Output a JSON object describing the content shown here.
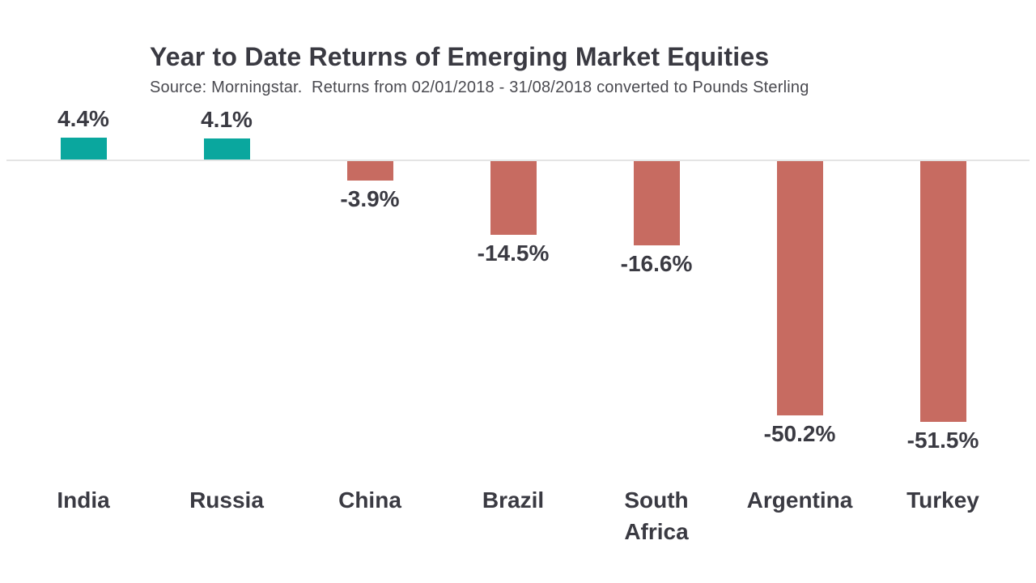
{
  "chart_data": {
    "type": "bar",
    "title": "Year to Date Returns of Emerging Market Equities",
    "subtitle": "Source: Morningstar.  Returns from 02/01/2018 - 31/08/2018 converted to Pounds Sterling",
    "categories": [
      "India",
      "Russia",
      "China",
      "Brazil",
      "South Africa",
      "Argentina",
      "Turkey"
    ],
    "values": [
      4.4,
      4.1,
      -3.9,
      -14.5,
      -16.6,
      -50.2,
      -51.5
    ],
    "value_labels": [
      "4.4%",
      "4.1%",
      "-3.9%",
      "-14.5%",
      "-16.6%",
      "-50.2%",
      "-51.5%"
    ],
    "unit": "%",
    "baseline_value": 0,
    "axes_visible": false,
    "gridline_at_zero": true,
    "colors": {
      "positive_bar": "#0AA79E",
      "negative_bar": "#C76B61",
      "zero_line": "#E4E4E4",
      "label_text": "#3A3A42",
      "subtitle_text": "#4A4A50"
    }
  }
}
